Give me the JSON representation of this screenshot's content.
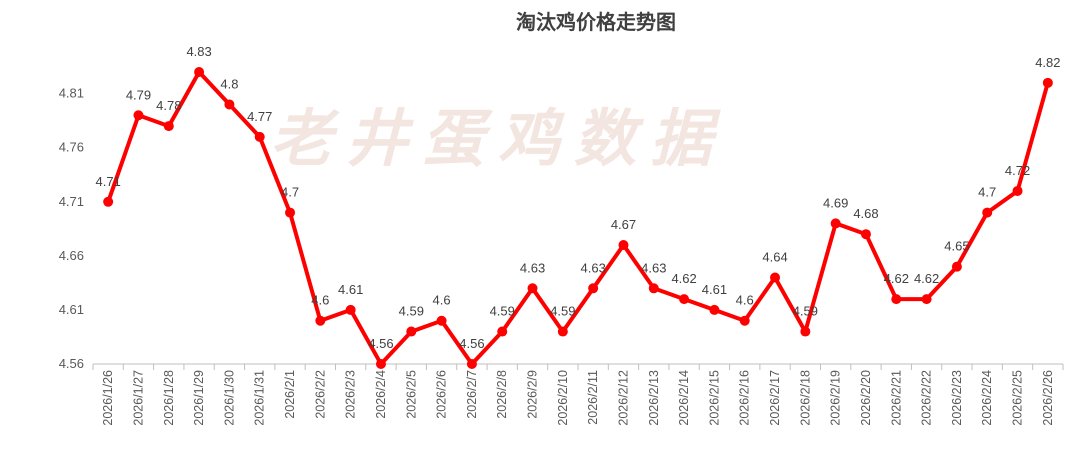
{
  "chart_data": {
    "type": "line",
    "title": "淘汰鸡价格走势图",
    "watermark": "老井蛋鸡数据",
    "xlabel": "",
    "ylabel": "",
    "ylim": [
      4.56,
      4.83
    ],
    "yticks": [
      "4.56",
      "4.61",
      "4.66",
      "4.71",
      "4.76",
      "4.81"
    ],
    "grid": false,
    "legend": "none",
    "color": "#ff0000",
    "categories": [
      "2026/1/26",
      "2026/1/27",
      "2026/1/28",
      "2026/1/29",
      "2026/1/30",
      "2026/1/31",
      "2026/2/1",
      "2026/2/2",
      "2026/2/3",
      "2026/2/4",
      "2026/2/5",
      "2026/2/6",
      "2026/2/7",
      "2026/2/8",
      "2026/2/9",
      "2026/2/10",
      "2026/2/11",
      "2026/2/12",
      "2026/2/13",
      "2026/2/14",
      "2026/2/15",
      "2026/2/16",
      "2026/2/17",
      "2026/2/18",
      "2026/2/19",
      "2026/2/20",
      "2026/2/21",
      "2026/2/22",
      "2026/2/23",
      "2026/2/24",
      "2026/2/25",
      "2026/2/26"
    ],
    "values": [
      4.71,
      4.79,
      4.78,
      4.83,
      4.8,
      4.77,
      4.7,
      4.6,
      4.61,
      4.56,
      4.59,
      4.6,
      4.56,
      4.59,
      4.63,
      4.59,
      4.63,
      4.67,
      4.63,
      4.62,
      4.61,
      4.6,
      4.64,
      4.59,
      4.69,
      4.68,
      4.62,
      4.62,
      4.65,
      4.7,
      4.72,
      4.82
    ],
    "value_labels": [
      "4.71",
      "4.79",
      "4.78",
      "4.83",
      "4.8",
      "4.77",
      "4.7",
      "4.6",
      "4.61",
      "4.56",
      "4.59",
      "4.6",
      "4.56",
      "4.59",
      "4.63",
      "4.59",
      "4.63",
      "4.67",
      "4.63",
      "4.62",
      "4.61",
      "4.6",
      "4.64",
      "4.59",
      "4.69",
      "4.68",
      "4.62",
      "4.62",
      "4.65",
      "4.7",
      "4.72",
      "4.82"
    ]
  }
}
